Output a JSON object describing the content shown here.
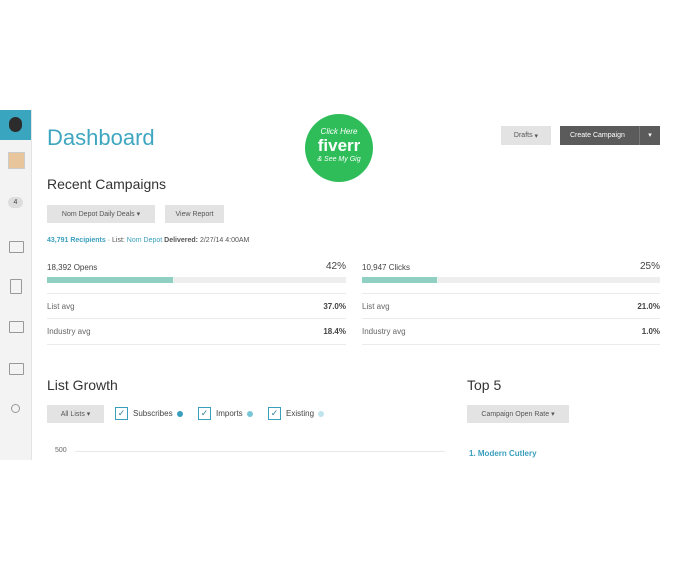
{
  "header": {
    "title": "Dashboard",
    "badge": {
      "line1": "Click Here",
      "brand": "fiverr",
      "line2": "& See My Gig"
    },
    "buttons": {
      "drafts": "Drafts",
      "create": "Create Campaign"
    }
  },
  "sidebar": {
    "badge": "4"
  },
  "recent": {
    "title": "Recent Campaigns",
    "dropdown": "Nom Depot Daily Deals",
    "view": "View Report",
    "recipients": "43,791 Recipients",
    "list_label": "· List:",
    "list": "Nom Depot",
    "delivered_label": "Delivered:",
    "delivered": "2/27/14 4:00AM",
    "stats": [
      {
        "label": "18,392 Opens",
        "percent": "42%",
        "value": 42,
        "rows": [
          {
            "label": "List avg",
            "value": "37.0%"
          },
          {
            "label": "Industry avg",
            "value": "18.4%"
          }
        ]
      },
      {
        "label": "10,947 Clicks",
        "percent": "25%",
        "value": 25,
        "rows": [
          {
            "label": "List avg",
            "value": "21.0%"
          },
          {
            "label": "Industry avg",
            "value": "1.0%"
          }
        ]
      }
    ]
  },
  "growth": {
    "title": "List Growth",
    "dropdown": "All Lists",
    "options": [
      {
        "label": "Subscribes",
        "color": "#3a9fbd"
      },
      {
        "label": "Imports",
        "color": "#79c6d8"
      },
      {
        "label": "Existing",
        "color": "#bfe3ec"
      }
    ],
    "ytick": "500"
  },
  "top": {
    "title": "Top 5",
    "dropdown": "Campaign Open Rate",
    "items": [
      "1. Modern Cutlery"
    ]
  }
}
